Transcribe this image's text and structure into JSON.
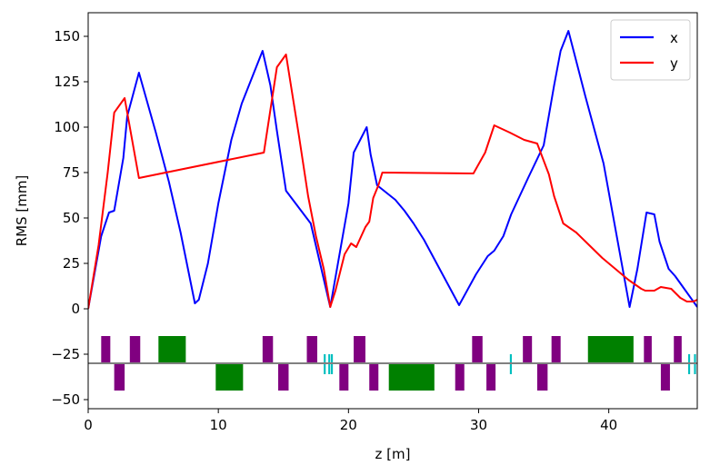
{
  "chart_data": {
    "type": "line",
    "title": "",
    "xlabel": "z [m]",
    "ylabel": "RMS [mm]",
    "xlim": [
      0,
      46.8
    ],
    "ylim": [
      -55,
      163
    ],
    "grid": false,
    "legend_placement": "top-right",
    "x_ticks": [
      0,
      10,
      20,
      30,
      40
    ],
    "y_ticks": [
      -50,
      -25,
      0,
      25,
      50,
      75,
      100,
      125,
      150
    ],
    "series": [
      {
        "name": "x",
        "color": "#0000ff",
        "points": [
          [
            0,
            0
          ],
          [
            1.0,
            40
          ],
          [
            1.6,
            53
          ],
          [
            2.0,
            54
          ],
          [
            2.7,
            83
          ],
          [
            3.0,
            106
          ],
          [
            3.9,
            130
          ],
          [
            5.2,
            97
          ],
          [
            6.2,
            70
          ],
          [
            7.1,
            42
          ],
          [
            8.2,
            3
          ],
          [
            8.5,
            5
          ],
          [
            9.2,
            25
          ],
          [
            10.0,
            58
          ],
          [
            11.0,
            93
          ],
          [
            11.8,
            113
          ],
          [
            13.4,
            142
          ],
          [
            14.0,
            123
          ],
          [
            14.5,
            98
          ],
          [
            15.2,
            65
          ],
          [
            17.1,
            47
          ],
          [
            18.6,
            1
          ],
          [
            20.0,
            58
          ],
          [
            20.4,
            86
          ],
          [
            21.4,
            100
          ],
          [
            21.7,
            85
          ],
          [
            22.2,
            68
          ],
          [
            22.9,
            64
          ],
          [
            23.6,
            60
          ],
          [
            24.3,
            54
          ],
          [
            25.0,
            47
          ],
          [
            25.8,
            38
          ],
          [
            27.0,
            22
          ],
          [
            28.5,
            2
          ],
          [
            29.8,
            19
          ],
          [
            30.7,
            29
          ],
          [
            31.2,
            32
          ],
          [
            31.9,
            40
          ],
          [
            32.5,
            52
          ],
          [
            33.8,
            72
          ],
          [
            35.0,
            90
          ],
          [
            35.8,
            123
          ],
          [
            36.3,
            142
          ],
          [
            36.9,
            153
          ],
          [
            38.2,
            117
          ],
          [
            39.6,
            80
          ],
          [
            41.6,
            1
          ],
          [
            42.2,
            22
          ],
          [
            42.9,
            53
          ],
          [
            43.5,
            52
          ],
          [
            43.9,
            37
          ],
          [
            44.6,
            22
          ],
          [
            45.1,
            18
          ],
          [
            45.8,
            11
          ],
          [
            46.8,
            1
          ]
        ]
      },
      {
        "name": "y",
        "color": "#ff0000",
        "points": [
          [
            0,
            0
          ],
          [
            0.8,
            35
          ],
          [
            1.5,
            75
          ],
          [
            2.0,
            108
          ],
          [
            2.8,
            116
          ],
          [
            3.0,
            108
          ],
          [
            3.9,
            72
          ],
          [
            13.5,
            86
          ],
          [
            14.5,
            133
          ],
          [
            15.2,
            140
          ],
          [
            16.2,
            95
          ],
          [
            16.9,
            62
          ],
          [
            17.5,
            40
          ],
          [
            18.1,
            22
          ],
          [
            18.6,
            1
          ],
          [
            19.0,
            10
          ],
          [
            19.7,
            30
          ],
          [
            20.2,
            36
          ],
          [
            20.6,
            34
          ],
          [
            21.3,
            45
          ],
          [
            21.6,
            48
          ],
          [
            21.9,
            61
          ],
          [
            22.3,
            68
          ],
          [
            22.6,
            75
          ],
          [
            29.6,
            74.5
          ],
          [
            30.5,
            86
          ],
          [
            31.2,
            101
          ],
          [
            32.4,
            97
          ],
          [
            33.5,
            93
          ],
          [
            34.5,
            91
          ],
          [
            35.4,
            74
          ],
          [
            35.8,
            62
          ],
          [
            36.5,
            47
          ],
          [
            37.5,
            42
          ],
          [
            38.5,
            35
          ],
          [
            39.5,
            28
          ],
          [
            40.5,
            22
          ],
          [
            41.5,
            16
          ],
          [
            42.5,
            11
          ],
          [
            42.8,
            10
          ],
          [
            43.5,
            10
          ],
          [
            44.0,
            12
          ],
          [
            44.8,
            11
          ],
          [
            45.5,
            6
          ],
          [
            46.0,
            4
          ],
          [
            46.5,
            4
          ],
          [
            46.8,
            5
          ]
        ]
      }
    ],
    "lattice": {
      "baseline": -30,
      "baseline_color": "#808080",
      "elements": [
        {
          "kind": "quad",
          "color": "#800080",
          "z0": 1.0,
          "z1": 1.7,
          "y0": -30,
          "y1": -15
        },
        {
          "kind": "quad",
          "color": "#800080",
          "z0": 2.0,
          "z1": 2.8,
          "y0": -45,
          "y1": -30
        },
        {
          "kind": "quad",
          "color": "#800080",
          "z0": 3.2,
          "z1": 4.0,
          "y0": -30,
          "y1": -15
        },
        {
          "kind": "dipole",
          "color": "#008000",
          "z0": 5.4,
          "z1": 7.5,
          "y0": -30,
          "y1": -15
        },
        {
          "kind": "dipole",
          "color": "#008000",
          "z0": 9.8,
          "z1": 11.9,
          "y0": -45,
          "y1": -30
        },
        {
          "kind": "quad",
          "color": "#800080",
          "z0": 13.4,
          "z1": 14.2,
          "y0": -30,
          "y1": -15
        },
        {
          "kind": "quad",
          "color": "#800080",
          "z0": 14.6,
          "z1": 15.4,
          "y0": -45,
          "y1": -30
        },
        {
          "kind": "quad",
          "color": "#800080",
          "z0": 16.8,
          "z1": 17.6,
          "y0": -30,
          "y1": -15
        },
        {
          "kind": "marker",
          "color": "#00bfbf",
          "z0": 18.1,
          "z1": 18.25,
          "y0": -36,
          "y1": -25
        },
        {
          "kind": "marker",
          "color": "#00bfbf",
          "z0": 18.45,
          "z1": 18.6,
          "y0": -36,
          "y1": -25
        },
        {
          "kind": "marker",
          "color": "#00bfbf",
          "z0": 18.65,
          "z1": 18.8,
          "y0": -36,
          "y1": -25
        },
        {
          "kind": "quad",
          "color": "#800080",
          "z0": 19.3,
          "z1": 20.0,
          "y0": -45,
          "y1": -30
        },
        {
          "kind": "quad",
          "color": "#800080",
          "z0": 20.4,
          "z1": 21.3,
          "y0": -30,
          "y1": -15
        },
        {
          "kind": "quad",
          "color": "#800080",
          "z0": 21.6,
          "z1": 22.3,
          "y0": -45,
          "y1": -30
        },
        {
          "kind": "dipole",
          "color": "#008000",
          "z0": 23.1,
          "z1": 26.6,
          "y0": -45,
          "y1": -30
        },
        {
          "kind": "quad",
          "color": "#800080",
          "z0": 28.2,
          "z1": 28.9,
          "y0": -45,
          "y1": -30
        },
        {
          "kind": "quad",
          "color": "#800080",
          "z0": 29.5,
          "z1": 30.3,
          "y0": -30,
          "y1": -15
        },
        {
          "kind": "quad",
          "color": "#800080",
          "z0": 30.6,
          "z1": 31.3,
          "y0": -45,
          "y1": -30
        },
        {
          "kind": "marker",
          "color": "#00bfbf",
          "z0": 32.4,
          "z1": 32.55,
          "y0": -36,
          "y1": -25
        },
        {
          "kind": "quad",
          "color": "#800080",
          "z0": 33.4,
          "z1": 34.1,
          "y0": -30,
          "y1": -15
        },
        {
          "kind": "quad",
          "color": "#800080",
          "z0": 34.5,
          "z1": 35.3,
          "y0": -45,
          "y1": -30
        },
        {
          "kind": "quad",
          "color": "#800080",
          "z0": 35.6,
          "z1": 36.3,
          "y0": -30,
          "y1": -15
        },
        {
          "kind": "dipole",
          "color": "#008000",
          "z0": 38.4,
          "z1": 41.9,
          "y0": -30,
          "y1": -15
        },
        {
          "kind": "quad",
          "color": "#800080",
          "z0": 42.7,
          "z1": 43.3,
          "y0": -30,
          "y1": -15
        },
        {
          "kind": "quad",
          "color": "#800080",
          "z0": 44.0,
          "z1": 44.7,
          "y0": -45,
          "y1": -30
        },
        {
          "kind": "quad",
          "color": "#800080",
          "z0": 45.0,
          "z1": 45.6,
          "y0": -30,
          "y1": -15
        },
        {
          "kind": "marker",
          "color": "#00bfbf",
          "z0": 46.1,
          "z1": 46.25,
          "y0": -36,
          "y1": -25
        },
        {
          "kind": "marker",
          "color": "#00bfbf",
          "z0": 46.55,
          "z1": 46.7,
          "y0": -36,
          "y1": -25
        }
      ]
    }
  }
}
